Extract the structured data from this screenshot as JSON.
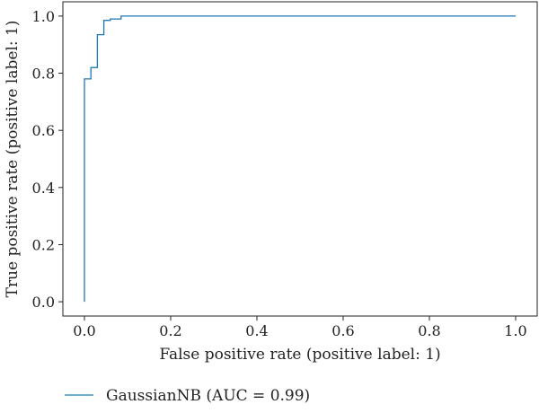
{
  "chart_data": {
    "type": "line",
    "title": "",
    "xlabel": "False positive rate (positive label: 1)",
    "ylabel": "True positive rate (positive label: 1)",
    "xlim": [
      -0.05,
      1.05
    ],
    "ylim": [
      -0.05,
      1.05
    ],
    "xticks": [
      0.0,
      0.2,
      0.4,
      0.6,
      0.8,
      1.0
    ],
    "yticks": [
      0.0,
      0.2,
      0.4,
      0.6,
      0.8,
      1.0
    ],
    "xtick_labels": [
      "0.0",
      "0.2",
      "0.4",
      "0.6",
      "0.8",
      "1.0"
    ],
    "ytick_labels": [
      "0.0",
      "0.2",
      "0.4",
      "0.6",
      "0.8",
      "1.0"
    ],
    "grid": false,
    "legend_position": "bottom-left",
    "series": [
      {
        "name": "GaussianNB (AUC = 0.99)",
        "color": "#1f77b4",
        "step": true,
        "x": [
          0.0,
          0.0,
          0.015,
          0.015,
          0.03,
          0.03,
          0.045,
          0.045,
          0.06,
          0.06,
          0.085,
          0.085,
          1.0
        ],
        "y": [
          0.0,
          0.78,
          0.78,
          0.82,
          0.82,
          0.935,
          0.935,
          0.985,
          0.985,
          0.99,
          0.99,
          1.0,
          1.0
        ]
      }
    ]
  }
}
